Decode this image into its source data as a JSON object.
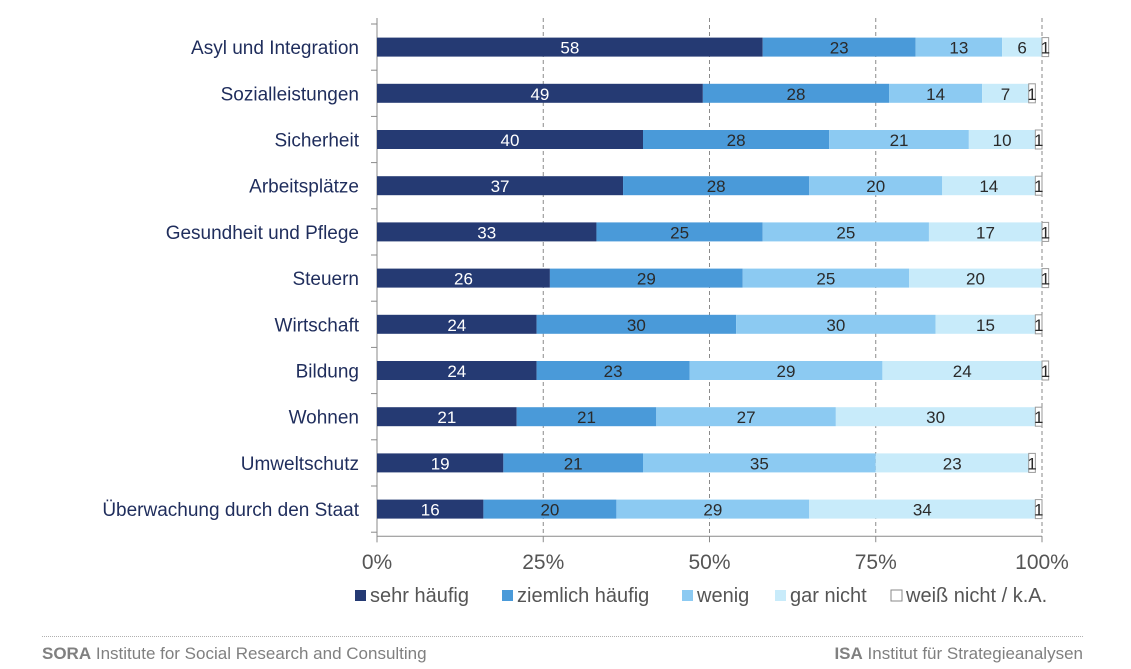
{
  "chart_data": {
    "type": "bar",
    "orientation": "horizontal",
    "stacked": true,
    "categories": [
      "Asyl und Integration",
      "Sozialleistungen",
      "Sicherheit",
      "Arbeitsplätze",
      "Gesundheit und Pflege",
      "Steuern",
      "Wirtschaft",
      "Bildung",
      "Wohnen",
      "Umweltschutz",
      "Überwachung durch den Staat"
    ],
    "series": [
      {
        "name": "sehr häufig",
        "color": "#253a73",
        "label_color": "#ffffff",
        "values": [
          58,
          49,
          40,
          37,
          33,
          26,
          24,
          24,
          21,
          19,
          16
        ]
      },
      {
        "name": "ziemlich häufig",
        "color": "#4a9ad9",
        "label_color": "#2a2a2a",
        "values": [
          23,
          28,
          28,
          28,
          25,
          29,
          30,
          23,
          21,
          21,
          20
        ]
      },
      {
        "name": "wenig",
        "color": "#8ccaf2",
        "label_color": "#2a2a2a",
        "values": [
          13,
          14,
          21,
          20,
          25,
          25,
          30,
          29,
          27,
          35,
          29
        ]
      },
      {
        "name": "gar nicht",
        "color": "#c8ebfa",
        "label_color": "#2a2a2a",
        "values": [
          6,
          7,
          10,
          14,
          17,
          20,
          15,
          24,
          30,
          23,
          34
        ]
      },
      {
        "name": "weiß nicht / k.A.",
        "color": "#ffffff",
        "label_color": "#2a2a2a",
        "values": [
          1,
          1,
          1,
          1,
          1,
          1,
          1,
          1,
          1,
          1,
          1
        ]
      }
    ],
    "xlim": [
      0,
      100
    ],
    "xticks": [
      "0%",
      "25%",
      "50%",
      "75%",
      "100%"
    ],
    "grid": "vertical dashed",
    "legend": "bottom"
  },
  "footer": {
    "left_bold": "SORA",
    "left_text": "Institute for Social Research and Consulting",
    "right_bold": "ISA",
    "right_text": "Institut für Strategieanalysen"
  }
}
